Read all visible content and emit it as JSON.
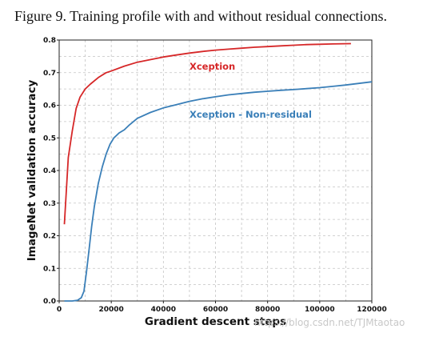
{
  "caption": "Figure 9. Training profile with and without residual connections.",
  "watermark": "https://blog.csdn.net/TJMtaotao",
  "chart_data": {
    "type": "line",
    "title": "",
    "xlabel": "Gradient descent steps",
    "ylabel": "ImageNet validation accuracy",
    "xlim": [
      0,
      120000
    ],
    "ylim": [
      0.0,
      0.8
    ],
    "xticks": [
      0,
      20000,
      40000,
      60000,
      80000,
      100000,
      120000
    ],
    "xtick_labels": [
      "0",
      "20000",
      "40000",
      "60000",
      "80000",
      "100000",
      "120000"
    ],
    "yticks": [
      0.0,
      0.1,
      0.2,
      0.3,
      0.4,
      0.5,
      0.6,
      0.7,
      0.8
    ],
    "ytick_labels": [
      "0.0",
      "0.1",
      "0.2",
      "0.3",
      "0.4",
      "0.5",
      "0.6",
      "0.7",
      "0.8"
    ],
    "grid": true,
    "series": [
      {
        "name": "Xception",
        "color": "#d62728",
        "x": [
          2000,
          3500,
          5000,
          6500,
          8000,
          10000,
          12000,
          15000,
          18000,
          20000,
          25000,
          30000,
          35000,
          40000,
          45000,
          50000,
          55000,
          60000,
          65000,
          70000,
          75000,
          80000,
          85000,
          90000,
          95000,
          100000,
          105000,
          112000
        ],
        "y": [
          0.235,
          0.44,
          0.52,
          0.59,
          0.625,
          0.65,
          0.665,
          0.685,
          0.7,
          0.705,
          0.72,
          0.732,
          0.74,
          0.748,
          0.754,
          0.76,
          0.765,
          0.769,
          0.772,
          0.775,
          0.778,
          0.78,
          0.782,
          0.784,
          0.786,
          0.787,
          0.788,
          0.789
        ]
      },
      {
        "name": "Xception - Non-residual",
        "color": "#3a7fb8",
        "x": [
          2000,
          5000,
          7000,
          8500,
          9500,
          10500,
          11500,
          12500,
          13500,
          15000,
          16500,
          18000,
          19500,
          21000,
          23000,
          25000,
          27000,
          30000,
          35000,
          40000,
          45000,
          50000,
          55000,
          60000,
          65000,
          70000,
          75000,
          80000,
          85000,
          90000,
          95000,
          100000,
          105000,
          110000,
          115000,
          120000
        ],
        "y": [
          0.0,
          0.0,
          0.002,
          0.01,
          0.03,
          0.09,
          0.16,
          0.23,
          0.29,
          0.36,
          0.41,
          0.45,
          0.48,
          0.5,
          0.515,
          0.525,
          0.54,
          0.56,
          0.578,
          0.592,
          0.602,
          0.612,
          0.62,
          0.626,
          0.632,
          0.636,
          0.64,
          0.643,
          0.646,
          0.648,
          0.651,
          0.654,
          0.658,
          0.662,
          0.667,
          0.672
        ]
      }
    ]
  }
}
